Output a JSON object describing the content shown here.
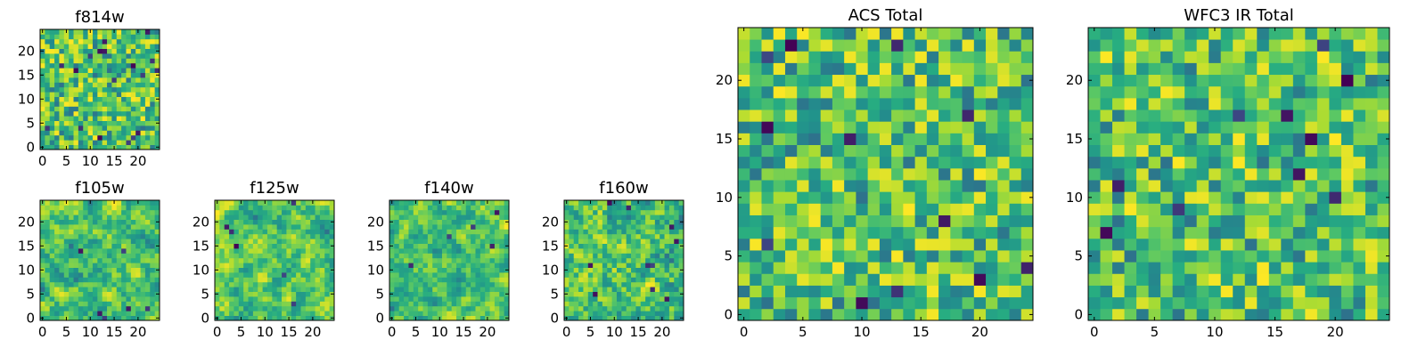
{
  "colormap": [
    "#440154",
    "#3b528b",
    "#21918c",
    "#27ad81",
    "#5ec962",
    "#aadc32",
    "#fde725"
  ],
  "chart_data": [
    {
      "type": "heatmap",
      "title": "f814w",
      "grid_size": 25,
      "xlim": [
        0,
        24
      ],
      "ylim": [
        0,
        24
      ],
      "xticks": [
        0,
        5,
        10,
        15,
        20
      ],
      "yticks": [
        0,
        5,
        10,
        15,
        20
      ],
      "seed": 11,
      "smooth": 0,
      "missing_pixels": 18
    },
    {
      "type": "heatmap",
      "title": "f105w",
      "grid_size": 25,
      "xlim": [
        0,
        24
      ],
      "ylim": [
        0,
        24
      ],
      "xticks": [
        0,
        5,
        10,
        15,
        20
      ],
      "yticks": [
        0,
        5,
        10,
        15,
        20
      ],
      "seed": 23,
      "smooth": 2,
      "missing_pixels": 6
    },
    {
      "type": "heatmap",
      "title": "f125w",
      "grid_size": 25,
      "xlim": [
        0,
        24
      ],
      "ylim": [
        0,
        24
      ],
      "xticks": [
        0,
        5,
        10,
        15,
        20
      ],
      "yticks": [
        0,
        5,
        10,
        15,
        20
      ],
      "seed": 37,
      "smooth": 2,
      "missing_pixels": 6
    },
    {
      "type": "heatmap",
      "title": "f140w",
      "grid_size": 25,
      "xlim": [
        0,
        24
      ],
      "ylim": [
        0,
        24
      ],
      "xticks": [
        0,
        5,
        10,
        15,
        20
      ],
      "yticks": [
        0,
        5,
        10,
        15,
        20
      ],
      "seed": 41,
      "smooth": 2,
      "missing_pixels": 5
    },
    {
      "type": "heatmap",
      "title": "f160w",
      "grid_size": 25,
      "xlim": [
        0,
        24
      ],
      "ylim": [
        0,
        24
      ],
      "xticks": [
        0,
        5,
        10,
        15,
        20
      ],
      "yticks": [
        0,
        5,
        10,
        15,
        20
      ],
      "seed": 53,
      "smooth": 1,
      "missing_pixels": 10
    },
    {
      "type": "heatmap",
      "title": "ACS Total",
      "grid_size": 25,
      "xlim": [
        0,
        24
      ],
      "ylim": [
        0,
        24
      ],
      "xticks": [
        0,
        5,
        10,
        15,
        20
      ],
      "yticks": [
        0,
        5,
        10,
        15,
        20
      ],
      "seed": 67,
      "smooth": 0,
      "missing_pixels": 12
    },
    {
      "type": "heatmap",
      "title": "WFC3 IR Total",
      "grid_size": 25,
      "xlim": [
        0,
        24
      ],
      "ylim": [
        0,
        24
      ],
      "xticks": [
        0,
        5,
        10,
        15,
        20
      ],
      "yticks": [
        0,
        5,
        10,
        15,
        20
      ],
      "seed": 79,
      "smooth": 0,
      "missing_pixels": 10
    }
  ]
}
